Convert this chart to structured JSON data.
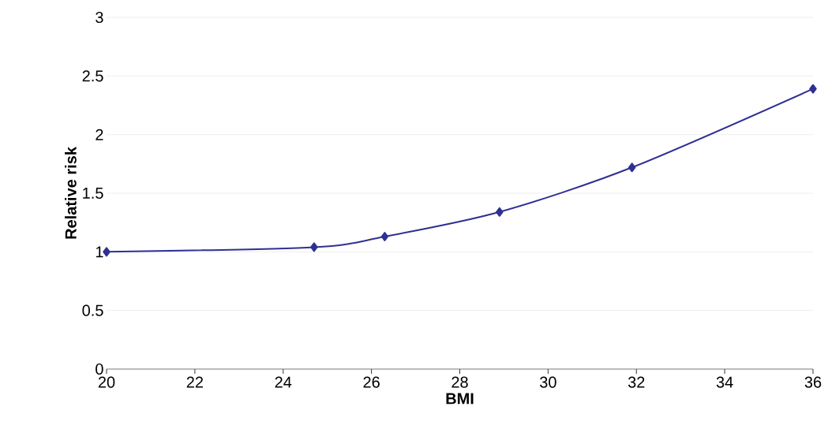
{
  "chart_data": {
    "type": "line",
    "xlabel": "BMI",
    "ylabel": "Relative risk",
    "x": [
      20,
      24.7,
      26.3,
      28.9,
      31.9,
      36
    ],
    "series": [
      {
        "color": "#2e3192",
        "values": [
          1.0,
          1.04,
          1.13,
          1.34,
          1.72,
          2.39
        ]
      }
    ],
    "xlim": [
      20,
      36
    ],
    "ylim": [
      0,
      3
    ],
    "xticks": [
      20,
      22,
      24,
      26,
      28,
      30,
      32,
      34,
      36
    ],
    "yticks": [
      0,
      0.5,
      1,
      1.5,
      2,
      2.5,
      3
    ],
    "grid": "y",
    "marker": "diamond",
    "line_style": "solid"
  }
}
